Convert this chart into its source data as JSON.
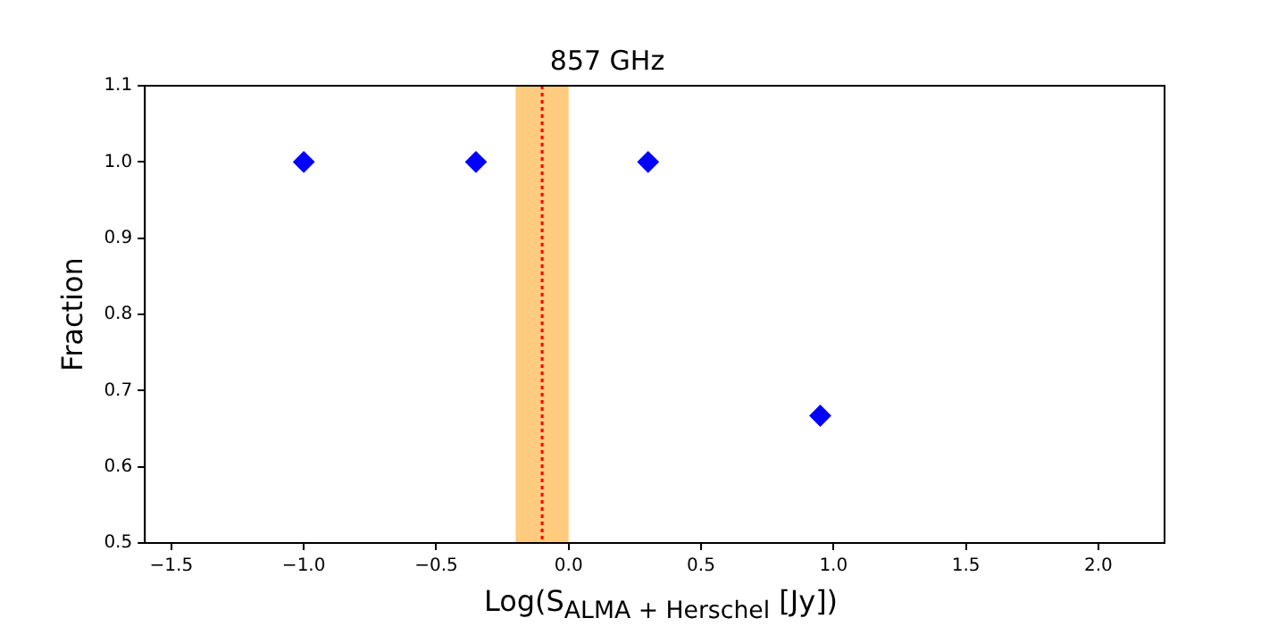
{
  "chart_data": {
    "type": "scatter",
    "title": "857 GHz",
    "xlabel": "Log(S$_{ALMA + Herschel}$ [Jy])",
    "ylabel": "Fraction",
    "x": [
      -1.0,
      -0.35,
      0.3,
      0.95
    ],
    "series": [
      {
        "color": "#0000ff",
        "values": [
          1.0,
          1.0,
          1.0,
          0.667
        ]
      }
    ],
    "marker": "diamond",
    "grid": false,
    "legend": false,
    "xlim": [
      -1.6,
      2.25
    ],
    "ylim": [
      0.5,
      1.1
    ],
    "xticks": [
      {
        "value": -1.5,
        "label": "−1.5"
      },
      {
        "value": -1.0,
        "label": "−1.0"
      },
      {
        "value": -0.5,
        "label": "−0.5"
      },
      {
        "value": 0,
        "label": "0.0"
      },
      {
        "value": 0.5,
        "label": "0.5"
      },
      {
        "value": 1.0,
        "label": "1.0"
      },
      {
        "value": 1.5,
        "label": "1.5"
      },
      {
        "value": 2.0,
        "label": "2.0"
      }
    ],
    "yticks": [
      {
        "value": 0.5,
        "label": "0.5"
      },
      {
        "value": 0.6,
        "label": "0.6"
      },
      {
        "value": 0.7,
        "label": "0.7"
      },
      {
        "value": 0.8,
        "label": "0.8"
      },
      {
        "value": 0.9,
        "label": "0.9"
      },
      {
        "value": 1.0,
        "label": "1.0"
      },
      {
        "value": 1.1,
        "label": "1.1"
      }
    ],
    "bands": [
      {
        "axis": "x",
        "from": -0.2,
        "to": 0.0,
        "color": "#fecb7f"
      }
    ],
    "ref_lines": [
      {
        "axis": "x",
        "value": -0.1,
        "color": "#ff0000",
        "line_style": "dotted"
      }
    ]
  }
}
